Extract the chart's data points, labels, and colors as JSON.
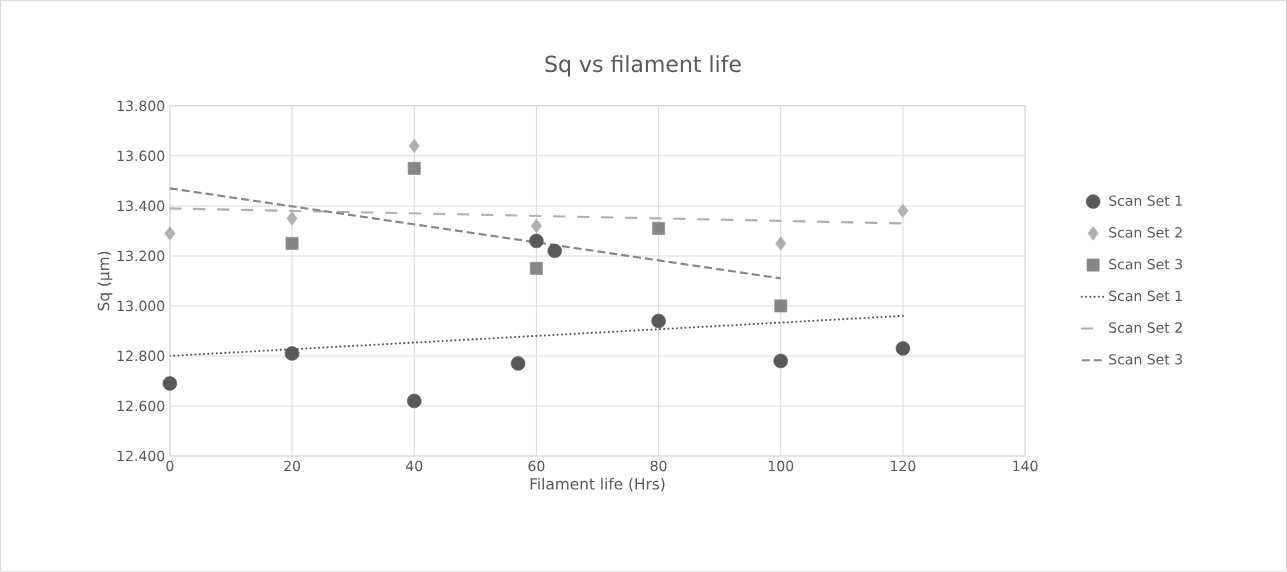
{
  "chart_data": {
    "type": "scatter",
    "title": "Sq vs filament life",
    "xlabel": "Filament life (Hrs)",
    "ylabel": "Sq (µm)",
    "xlim": [
      0,
      140
    ],
    "xticks": [
      0,
      20,
      40,
      60,
      80,
      100,
      120,
      140
    ],
    "ylim": [
      12.4,
      13.8
    ],
    "yticks": [
      {
        "value": 12.4,
        "label": "12.400"
      },
      {
        "value": 12.6,
        "label": "12.600"
      },
      {
        "value": 12.8,
        "label": "12.800"
      },
      {
        "value": 13.0,
        "label": "13.000"
      },
      {
        "value": 13.2,
        "label": "13.200"
      },
      {
        "value": 13.4,
        "label": "13.400"
      },
      {
        "value": 13.6,
        "label": "13.600"
      },
      {
        "value": 13.8,
        "label": "13.800"
      }
    ],
    "grid": true,
    "legend": "right",
    "series": [
      {
        "name": "Scan Set 1",
        "color": "#595959",
        "marker": "circle",
        "x": [
          0,
          20,
          40,
          57,
          60,
          63,
          80,
          100,
          120
        ],
        "values": [
          12.69,
          12.81,
          12.62,
          12.77,
          13.26,
          13.22,
          12.94,
          12.78,
          12.83
        ]
      },
      {
        "name": "Scan Set 2",
        "color": "#b0b0b0",
        "marker": "diamond",
        "x": [
          0,
          20,
          40,
          60,
          100,
          120
        ],
        "values": [
          13.29,
          13.35,
          13.64,
          13.32,
          13.25,
          13.38
        ]
      },
      {
        "name": "Scan Set 3",
        "color": "#868686",
        "marker": "square",
        "x": [
          20,
          40,
          60,
          80,
          100
        ],
        "values": [
          13.25,
          13.55,
          13.15,
          13.31,
          13.0
        ]
      },
      {
        "name": "Scan Set 1",
        "type": "line",
        "color": "#595959",
        "line_style": "dotted",
        "x": [
          0,
          120
        ],
        "values": [
          12.8,
          12.96
        ]
      },
      {
        "name": "Scan Set 2",
        "type": "line",
        "color": "#b0b0b0",
        "line_style": "dashdot",
        "x": [
          0,
          120
        ],
        "values": [
          13.39,
          13.33
        ]
      },
      {
        "name": "Scan Set 3",
        "type": "line",
        "color": "#868686",
        "line_style": "dashed",
        "x": [
          0,
          100
        ],
        "values": [
          13.47,
          13.11
        ]
      }
    ]
  }
}
